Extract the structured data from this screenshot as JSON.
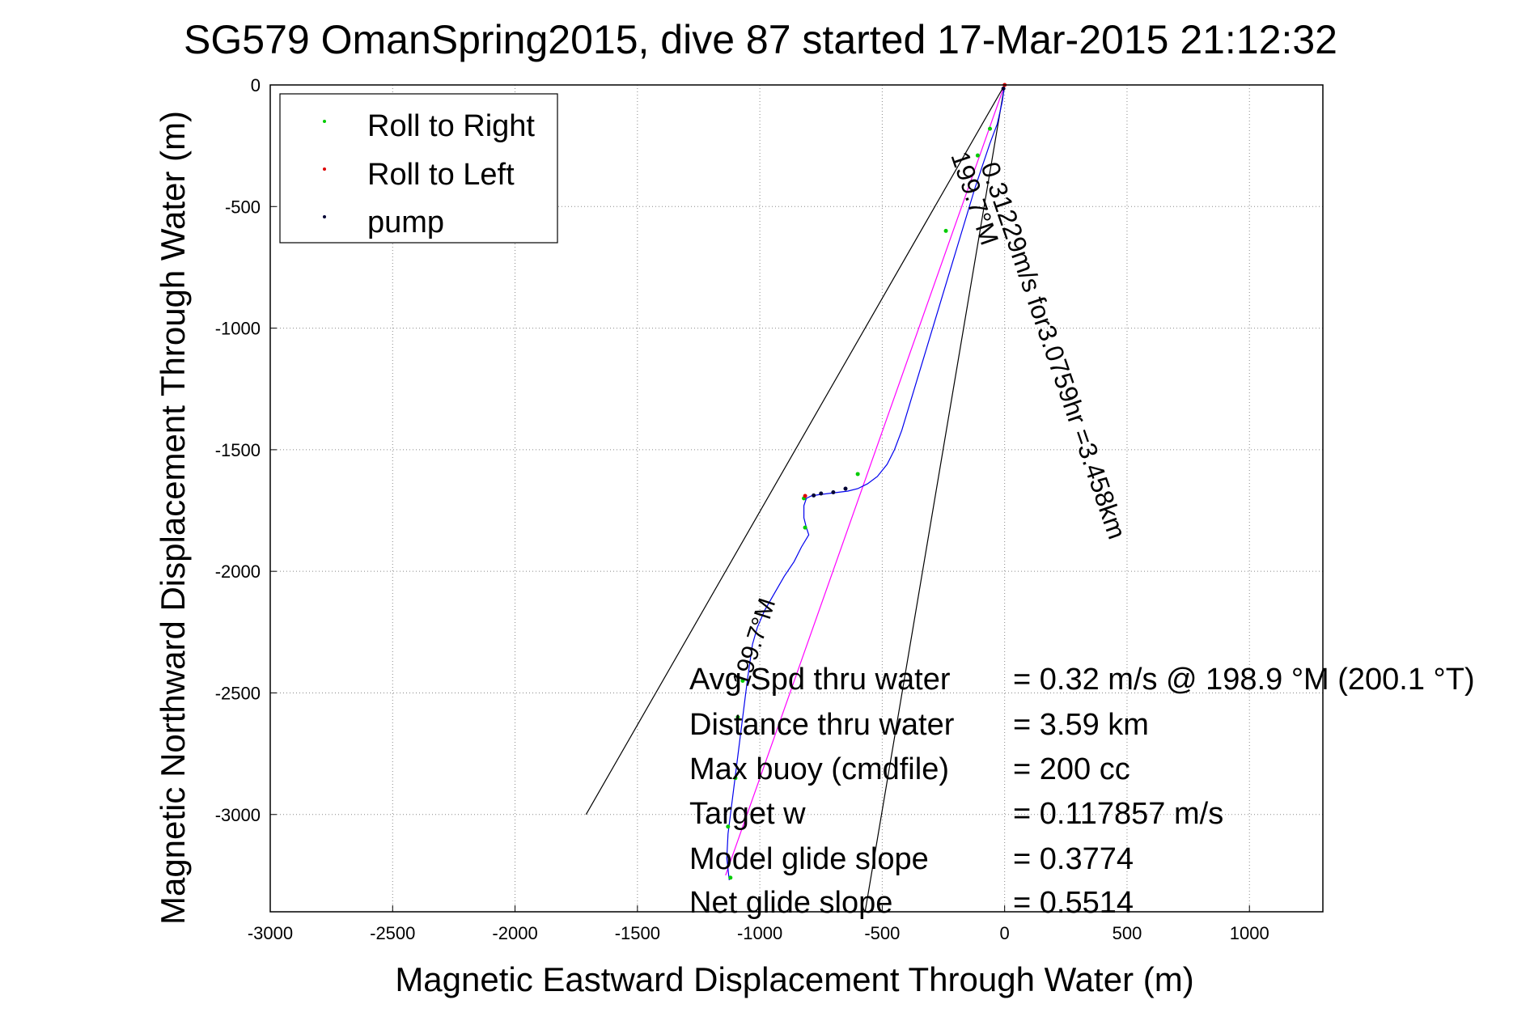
{
  "chart_data": {
    "type": "line",
    "title": "SG579 OmanSpring2015, dive 87 started 17-Mar-2015 21:12:32",
    "xlabel": "Magnetic Eastward Displacement Through Water (m)",
    "ylabel": "Magnetic Northward Displacement Through Water (m)",
    "xlim": [
      -3000,
      1300
    ],
    "ylim": [
      -3400,
      0
    ],
    "grid": true,
    "x_ticks": [
      "-3000",
      "-2500",
      "-2000",
      "-1500",
      "-1000",
      "-500",
      "0",
      "500",
      "1000"
    ],
    "y_ticks": [
      "0",
      "-500",
      "-1000",
      "-1500",
      "-2000",
      "-2500",
      "-3000"
    ],
    "legend": {
      "placement": "top-left",
      "entries": [
        {
          "label": "Roll to Right",
          "color": "#00cc00"
        },
        {
          "label": "Roll to Left",
          "color": "#dd0000"
        },
        {
          "label": "pump",
          "color": "#000033"
        }
      ]
    },
    "track": {
      "color": "#0000ee",
      "x": [
        0,
        -10,
        -30,
        -60,
        -90,
        -120,
        -150,
        -180,
        -210,
        -240,
        -270,
        -300,
        -330,
        -360,
        -390,
        -420,
        -450,
        -480,
        -520,
        -560,
        -600,
        -640,
        -680,
        -720,
        -760,
        -790,
        -810,
        -820,
        -820,
        -810,
        -800,
        -830,
        -860,
        -900,
        -940,
        -980,
        -1010,
        -1030,
        -1040,
        -1050,
        -1060,
        -1070,
        -1080,
        -1090,
        -1100,
        -1110,
        -1120,
        -1130,
        -1135,
        -1125
      ],
      "y": [
        0,
        -70,
        -160,
        -240,
        -330,
        -420,
        -520,
        -620,
        -720,
        -820,
        -920,
        -1020,
        -1120,
        -1220,
        -1320,
        -1420,
        -1500,
        -1560,
        -1610,
        -1640,
        -1660,
        -1670,
        -1675,
        -1680,
        -1685,
        -1690,
        -1700,
        -1730,
        -1780,
        -1820,
        -1850,
        -1900,
        -1960,
        -2020,
        -2090,
        -2160,
        -2230,
        -2300,
        -2370,
        -2440,
        -2520,
        -2600,
        -2680,
        -2760,
        -2840,
        -2920,
        -3000,
        -3080,
        -3180,
        -3270
      ]
    },
    "bearing_line": {
      "color": "#ff00ff",
      "x": [
        0,
        -1140
      ],
      "y": [
        0,
        -3250
      ]
    },
    "bounding_lines": {
      "color": "#000000",
      "lines": [
        {
          "x": [
            0,
            -1710
          ],
          "y": [
            0,
            -3000
          ]
        },
        {
          "x": [
            0,
            -570
          ],
          "y": [
            0,
            -3400
          ]
        }
      ]
    },
    "roll_right_points": {
      "x": [
        -60,
        -110,
        -240,
        -600,
        -820,
        -815,
        -1070,
        -1090,
        -1100,
        -1130,
        -1120
      ],
      "y": [
        -180,
        -290,
        -600,
        -1600,
        -1700,
        -1820,
        -2450,
        -2600,
        -2850,
        -3050,
        -3260
      ]
    },
    "roll_left_points": {
      "x": [
        0,
        -815
      ],
      "y": [
        0,
        -1690
      ]
    },
    "pump_points": {
      "x": [
        -5,
        -650,
        -700,
        -750,
        -780
      ],
      "y": [
        -15,
        -1660,
        -1675,
        -1680,
        -1688
      ]
    }
  },
  "annotations": {
    "rotated_label_1": "199.7°M",
    "rotated_label_2": "0.31229m/s for3.0759hr =3.458km",
    "rotated_label_3": "199.7°M",
    "stats": [
      {
        "label": "Avg Spd thru water",
        "value": "=  0.32 m/s @ 198.9 °M (200.1 °T)"
      },
      {
        "label": "Distance thru water",
        "value": "=  3.59 km"
      },
      {
        "label": "Max buoy (cmdfile)",
        "value": "= 200 cc"
      },
      {
        "label": "Target w",
        "value": "= 0.117857 m/s"
      },
      {
        "label": "Model glide slope",
        "value": "= 0.3774"
      },
      {
        "label": "Net glide slope",
        "value": "= 0.5514"
      }
    ]
  }
}
